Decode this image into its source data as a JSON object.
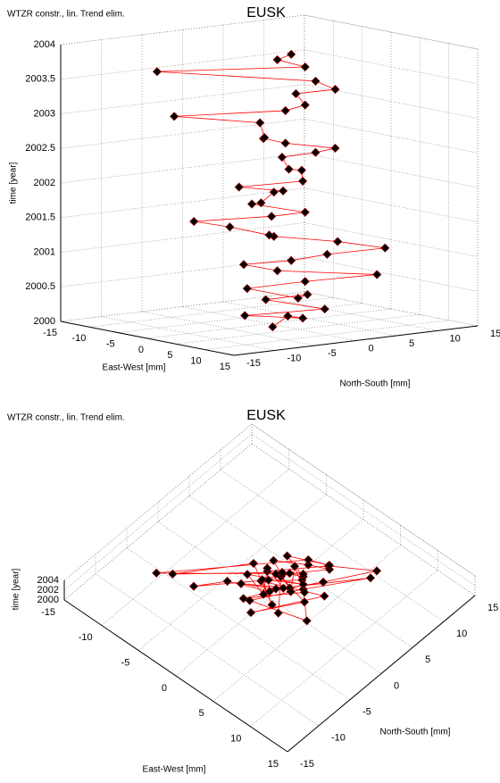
{
  "chart_data": [
    {
      "type": "scatter3d",
      "title": "EUSK",
      "subtitle": "WTZR constr., lin. Trend elim.",
      "xlabel": "East-West [mm]",
      "ylabel": "North-South [mm]",
      "zlabel": "time [year]",
      "x": [
        2,
        -1,
        3,
        0,
        4,
        -2,
        1,
        5,
        -1,
        2,
        6,
        0,
        -3,
        1,
        3,
        6,
        2,
        -2,
        0,
        -4,
        -6,
        -1,
        2,
        -3,
        0,
        -2,
        1,
        -1,
        3,
        0,
        2,
        -2,
        1,
        3,
        0,
        -1,
        2,
        -3,
        -8,
        0,
        2,
        -1,
        3,
        1,
        -9,
        2,
        0,
        1
      ],
      "y": [
        -1,
        3,
        2,
        -3,
        4,
        1,
        4,
        0,
        -2,
        3,
        9,
        1,
        -1,
        2,
        5,
        10,
        7,
        2,
        0,
        -2,
        -5,
        1,
        3,
        0,
        -1,
        2,
        1,
        -3,
        2,
        4,
        1,
        3,
        5,
        6,
        2,
        0,
        -2,
        1,
        -6,
        2,
        3,
        4,
        6,
        5,
        -7.4,
        3,
        1,
        2
      ],
      "z": [
        2000,
        2000.05,
        2000.1,
        2000.16,
        2000.22,
        2000.3,
        2000.38,
        2000.45,
        2000.52,
        2000.6,
        2000.68,
        2000.75,
        2000.82,
        2000.9,
        2000.98,
        2001.05,
        2001.12,
        2001.2,
        2001.28,
        2001.36,
        2001.45,
        2001.52,
        2001.6,
        2001.68,
        2001.76,
        2001.84,
        2001.92,
        2002,
        2002.08,
        2002.16,
        2002.25,
        2002.33,
        2002.42,
        2002.5,
        2002.58,
        2002.66,
        2002.75,
        2002.84,
        2002.95,
        2003.05,
        2003.15,
        2003.25,
        2003.35,
        2003.45,
        2003.6,
        2003.7,
        2003.8,
        2003.88
      ],
      "xlim": [
        -15,
        15
      ],
      "ylim": [
        -15,
        15
      ],
      "zlim": [
        2000,
        2004
      ],
      "xticks": [
        -15,
        -10,
        -5,
        0,
        5,
        10,
        15
      ],
      "yticks": [
        -15,
        -10,
        -5,
        0,
        5,
        10,
        15
      ],
      "zticks": [
        2000,
        2000.5,
        2001,
        2001.5,
        2002,
        2002.5,
        2003,
        2003.5,
        2004
      ],
      "marker_color": "#000000",
      "marker_edge_color": "#8b0000",
      "line_color": "#ff0000",
      "grid": true
    },
    {
      "type": "scatter3d",
      "title": "EUSK",
      "subtitle": "WTZR constr., lin. Trend elim.",
      "xlabel": "East-West [mm]",
      "ylabel": "North-South [mm]",
      "zlabel": "time [year]",
      "x": [
        2,
        -1,
        3,
        0,
        4,
        -2,
        1,
        5,
        -1,
        2,
        6,
        0,
        -3,
        1,
        3,
        6,
        2,
        -2,
        0,
        -4,
        -6,
        -1,
        2,
        -3,
        0,
        -2,
        1,
        -1,
        3,
        0,
        2,
        -2,
        1,
        3,
        0,
        -1,
        2,
        -3,
        -8,
        0,
        2,
        -1,
        3,
        1,
        -9,
        2,
        0,
        1
      ],
      "y": [
        -1,
        3,
        2,
        -3,
        4,
        1,
        4,
        0,
        -2,
        3,
        9,
        1,
        -1,
        2,
        5,
        10,
        7,
        2,
        0,
        -2,
        -5,
        1,
        3,
        0,
        -1,
        2,
        1,
        -3,
        2,
        4,
        1,
        3,
        5,
        6,
        2,
        0,
        -2,
        1,
        -6,
        2,
        3,
        4,
        6,
        5,
        -7.4,
        3,
        1,
        2
      ],
      "z": [
        2000,
        2000.05,
        2000.1,
        2000.16,
        2000.22,
        2000.3,
        2000.38,
        2000.45,
        2000.52,
        2000.6,
        2000.68,
        2000.75,
        2000.82,
        2000.9,
        2000.98,
        2001.05,
        2001.12,
        2001.2,
        2001.28,
        2001.36,
        2001.45,
        2001.52,
        2001.6,
        2001.68,
        2001.76,
        2001.84,
        2001.92,
        2002,
        2002.08,
        2002.16,
        2002.25,
        2002.33,
        2002.42,
        2002.5,
        2002.58,
        2002.66,
        2002.75,
        2002.84,
        2002.95,
        2003.05,
        2003.15,
        2003.25,
        2003.35,
        2003.45,
        2003.6,
        2003.7,
        2003.8,
        2003.88
      ],
      "xlim": [
        -15,
        15
      ],
      "ylim": [
        -15,
        15
      ],
      "zlim": [
        2000,
        2004
      ],
      "xticks": [
        -15,
        -10,
        -5,
        0,
        5,
        10,
        15
      ],
      "yticks": [
        -15,
        -10,
        -5,
        0,
        5,
        10,
        15
      ],
      "zticks": [
        2000,
        2002,
        2004
      ],
      "marker_color": "#000000",
      "marker_edge_color": "#8b0000",
      "line_color": "#ff0000",
      "grid": true
    }
  ]
}
